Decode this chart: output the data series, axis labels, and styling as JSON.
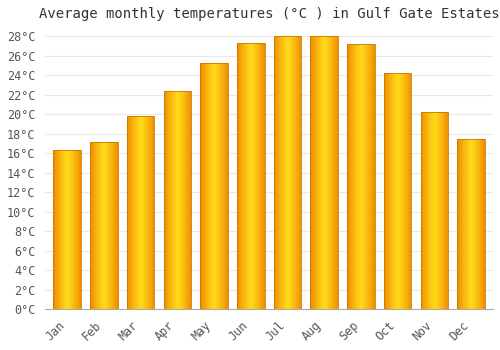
{
  "title": "Average monthly temperatures (°C ) in Gulf Gate Estates",
  "months": [
    "Jan",
    "Feb",
    "Mar",
    "Apr",
    "May",
    "Jun",
    "Jul",
    "Aug",
    "Sep",
    "Oct",
    "Nov",
    "Dec"
  ],
  "values": [
    16.3,
    17.1,
    19.8,
    22.4,
    25.2,
    27.3,
    28.0,
    28.0,
    27.2,
    24.2,
    20.2,
    17.4
  ],
  "bar_color_center": "#FFD000",
  "bar_color_edge": "#F59B00",
  "ylim": [
    0,
    29
  ],
  "ytick_step": 2,
  "background_color": "#FFFFFF",
  "grid_color": "#E8E8E8",
  "title_fontsize": 10,
  "tick_fontsize": 8.5,
  "bar_width": 0.75
}
